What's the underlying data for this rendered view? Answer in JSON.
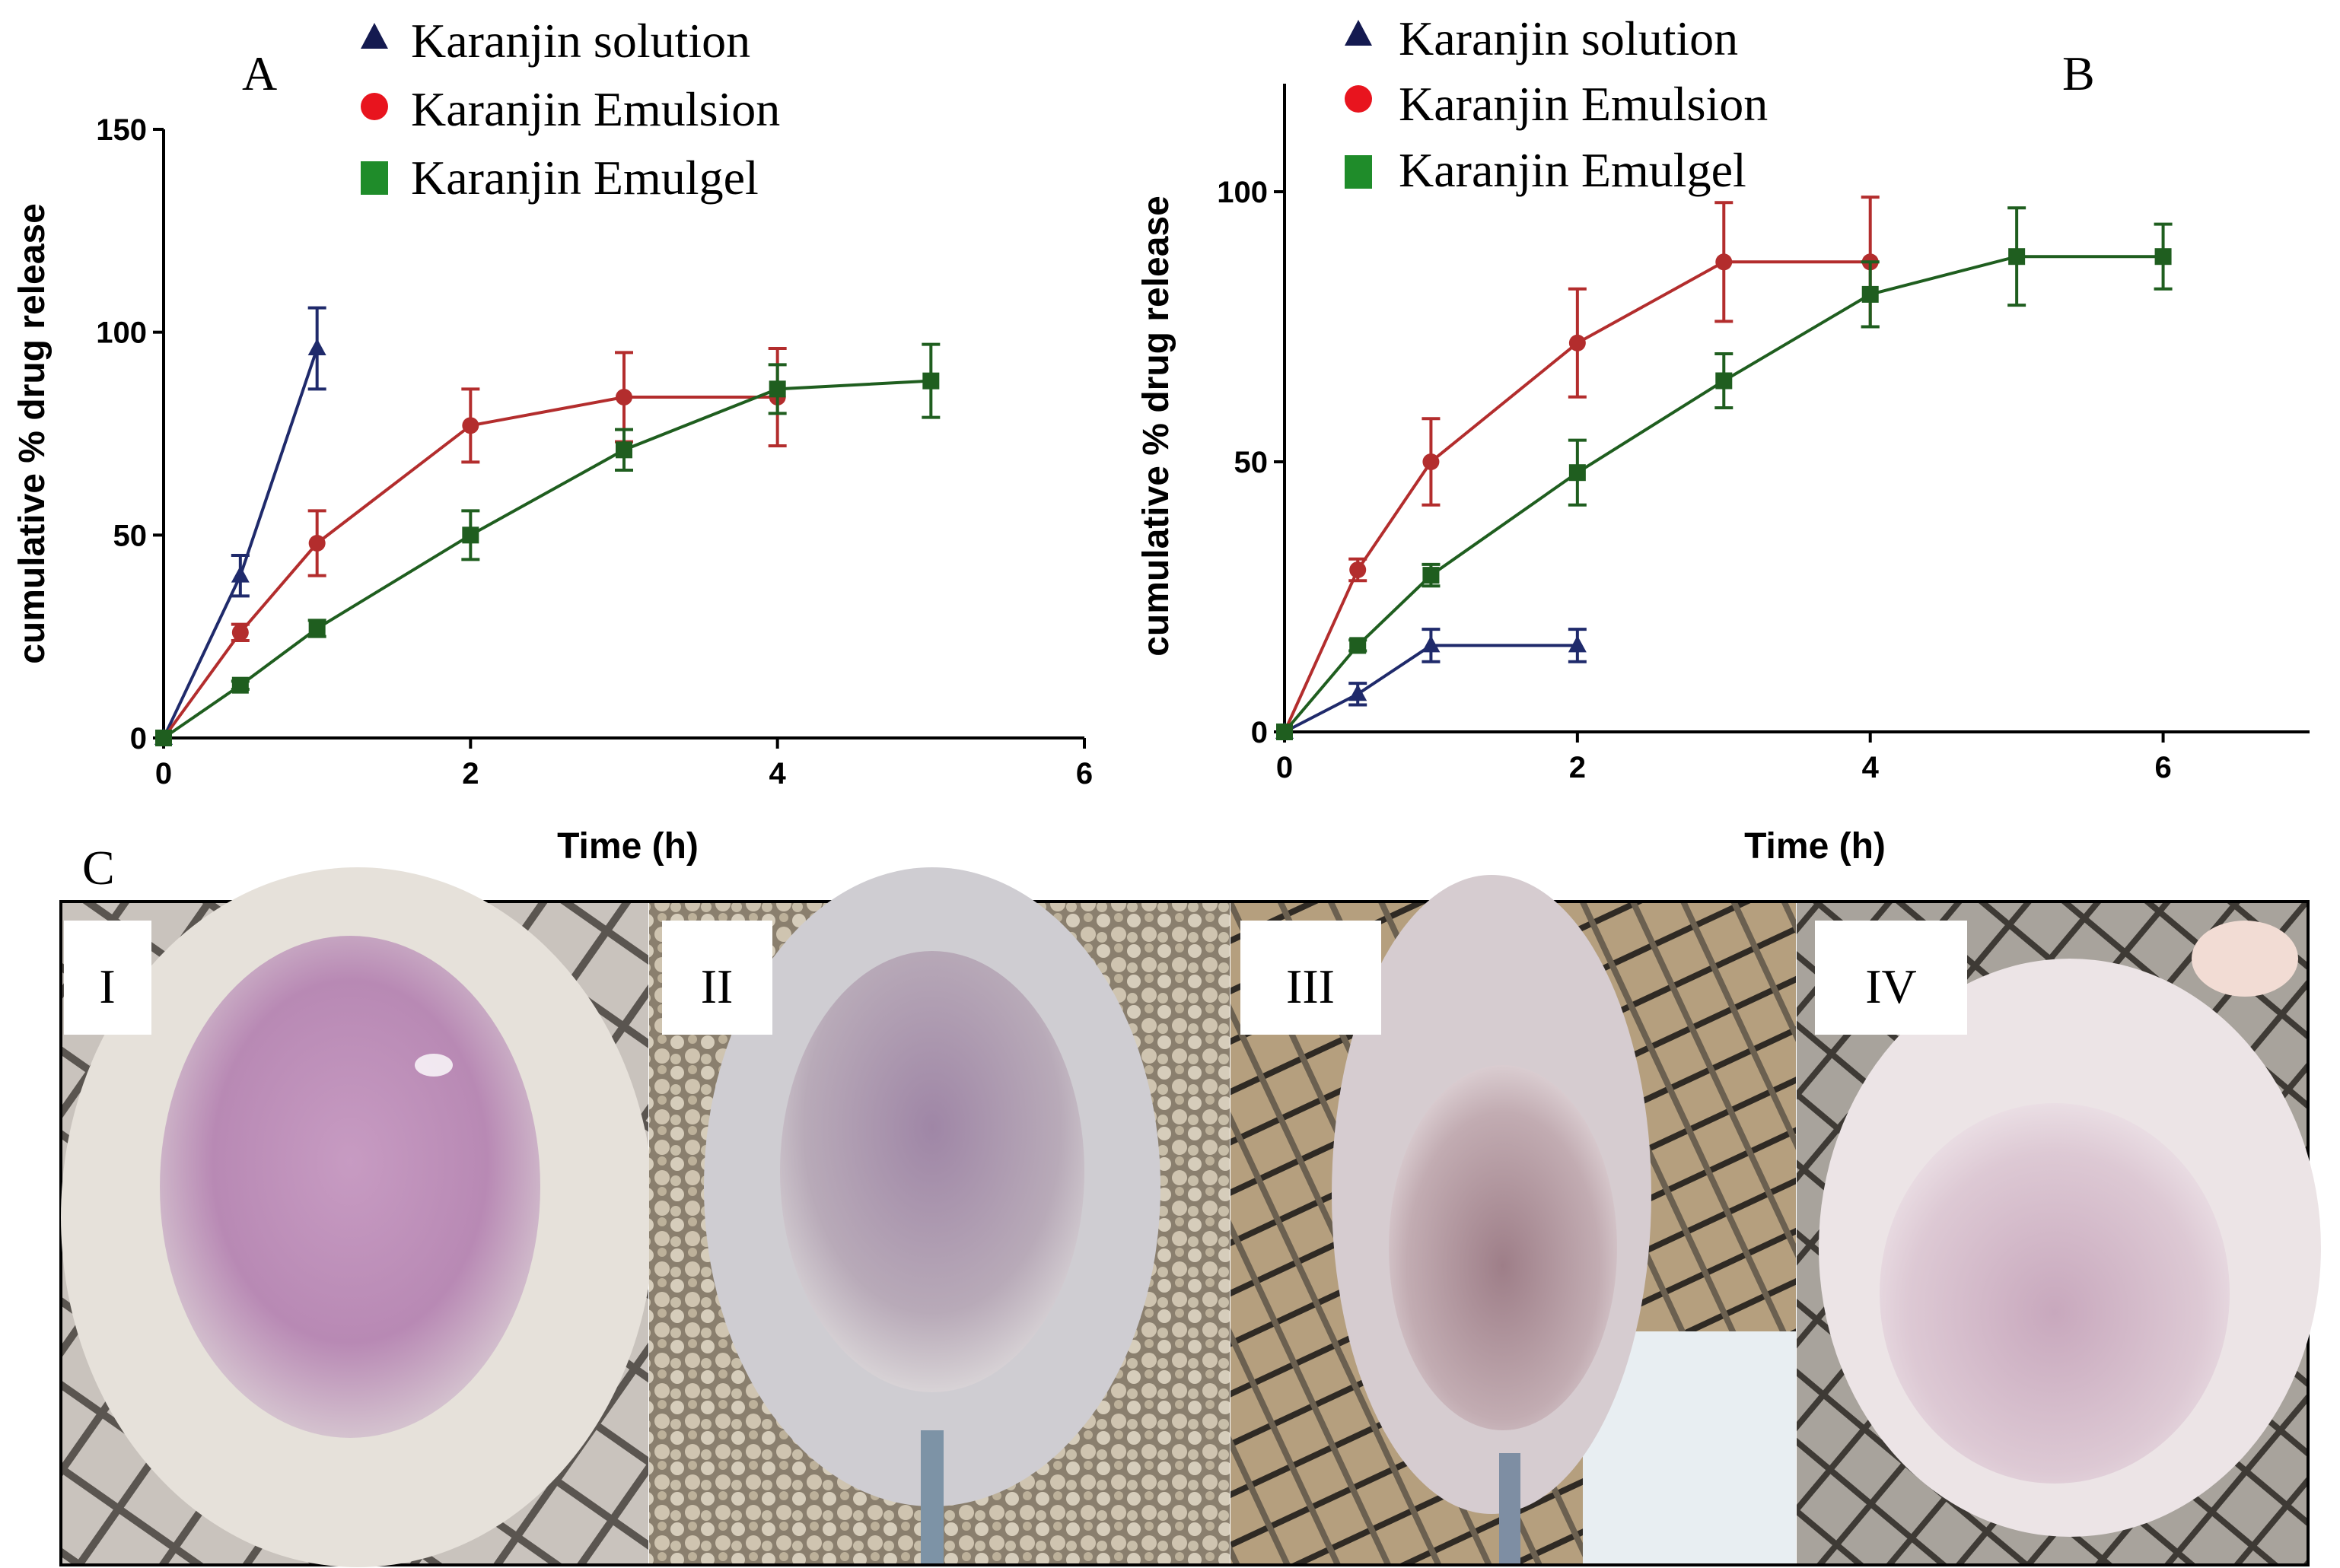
{
  "colors": {
    "solution": "#1f2a6b",
    "emulsion": "#b32d2d",
    "emulgel": "#1f5e1f",
    "legend_solution": "#141a50",
    "legend_emulsion": "#e8141e",
    "legend_emulgel": "#1f8c2a"
  },
  "legend": {
    "solution": "Karanjin solution",
    "emulsion": "Karanjin Emulsion",
    "emulgel": "Karanjin Emulgel"
  },
  "chart_data": [
    {
      "panel": "A",
      "type": "line",
      "xlabel": "Time (h)",
      "ylabel": "cumulative % drug release",
      "xlim": [
        0,
        6
      ],
      "ylim": [
        0,
        150
      ],
      "xticks": [
        0,
        2,
        4,
        6
      ],
      "yticks": [
        0,
        50,
        100,
        150
      ],
      "legend_position": "top",
      "series": [
        {
          "key": "solution",
          "name": "Karanjin solution",
          "marker": "triangle",
          "x": [
            0,
            0.5,
            1
          ],
          "y": [
            0,
            40,
            96
          ],
          "err": [
            0,
            5,
            10
          ]
        },
        {
          "key": "emulsion",
          "name": "Karanjin Emulsion",
          "marker": "circle",
          "x": [
            0,
            0.5,
            1,
            2,
            3,
            4
          ],
          "y": [
            0,
            26,
            48,
            77,
            84,
            84
          ],
          "err": [
            0,
            2,
            8,
            9,
            11,
            12
          ]
        },
        {
          "key": "emulgel",
          "name": "Karanjin Emulgel",
          "marker": "square",
          "x": [
            0,
            0.5,
            1,
            2,
            3,
            4,
            5
          ],
          "y": [
            0,
            13,
            27,
            50,
            71,
            86,
            88
          ],
          "err": [
            0,
            1,
            2,
            6,
            5,
            6,
            9
          ]
        }
      ]
    },
    {
      "panel": "B",
      "type": "line",
      "xlabel": "Time (h)",
      "ylabel": "cumulative % drug release",
      "xlim": [
        0,
        7
      ],
      "ylim": [
        0,
        120
      ],
      "xticks": [
        0,
        2,
        4,
        6
      ],
      "yticks": [
        0,
        50,
        100
      ],
      "legend_position": "top",
      "series": [
        {
          "key": "solution",
          "name": "Karanjin solution",
          "marker": "triangle",
          "x": [
            0,
            0.5,
            1,
            2
          ],
          "y": [
            0,
            7,
            16,
            16
          ],
          "err": [
            0,
            2,
            3,
            3
          ]
        },
        {
          "key": "emulsion",
          "name": "Karanjin Emulsion",
          "marker": "circle",
          "x": [
            0,
            0.5,
            1,
            2,
            3,
            4
          ],
          "y": [
            0,
            30,
            50,
            72,
            87,
            87
          ],
          "err": [
            0,
            2,
            8,
            10,
            11,
            12
          ]
        },
        {
          "key": "emulgel",
          "name": "Karanjin Emulgel",
          "marker": "square",
          "x": [
            0,
            0.5,
            1,
            2,
            3,
            4,
            5,
            6
          ],
          "y": [
            0,
            16,
            29,
            48,
            65,
            81,
            88,
            88
          ],
          "err": [
            0,
            1,
            2,
            6,
            5,
            6,
            9,
            6
          ]
        }
      ]
    }
  ],
  "panel_c": {
    "letter": "C",
    "photos": [
      {
        "label": "I"
      },
      {
        "label": "II"
      },
      {
        "label": "III"
      },
      {
        "label": "IV"
      }
    ]
  }
}
